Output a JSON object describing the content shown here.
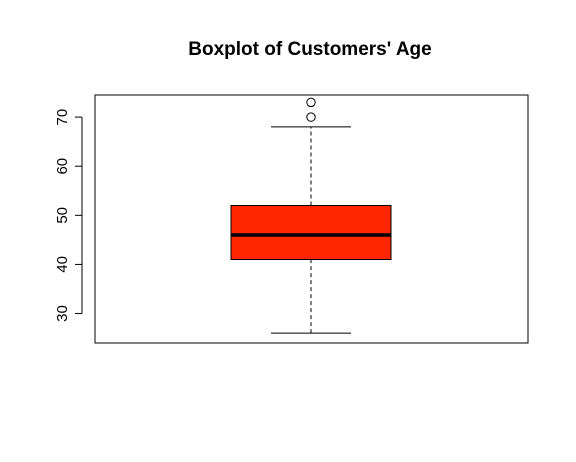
{
  "chart_data": {
    "type": "boxplot",
    "title": "Boxplot of Customers' Age",
    "xlabel": "",
    "ylabel": "",
    "ylim": [
      24,
      74.5
    ],
    "yticks": [
      30,
      40,
      50,
      60,
      70
    ],
    "ytick_labels": [
      "30",
      "40",
      "50",
      "60",
      "70"
    ],
    "grid": false,
    "box": {
      "min": 26,
      "q1": 41,
      "median": 46,
      "q3": 52,
      "max": 68,
      "outliers": [
        70,
        73
      ]
    },
    "colors": {
      "box_fill": "#ff2600",
      "stroke": "#000000"
    }
  }
}
